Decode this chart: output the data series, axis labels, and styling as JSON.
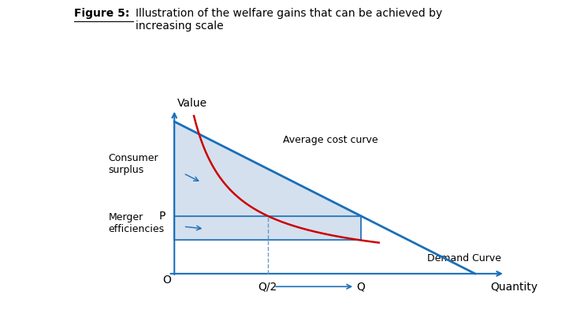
{
  "title_bold": "Figure 5:",
  "title_normal": "Illustration of the welfare gains that can be achieved by\nincreasing scale",
  "xlabel": "Quantity",
  "ylabel": "Value",
  "x_origin_label": "O",
  "demand_color": "#1a6fba",
  "avg_cost_color": "#cc0000",
  "shading_color": "#b8cce4",
  "shading_alpha": 0.6,
  "border_color": "#1a6fba",
  "P_label": "P",
  "Q_label": "Q",
  "Q2_label": "Q/2",
  "consumer_surplus_label": "Consumer\nsurplus",
  "merger_efficiencies_label": "Merger\nefficiencies",
  "avg_cost_label": "Average cost curve",
  "demand_label": "Demand Curve",
  "arrow_color": "#1a6fba",
  "dashed_line_color": "#6699cc",
  "P_val": 0.38,
  "Q_val": 0.62,
  "Q2_val": 0.31,
  "cost_at_Q_val": 0.22,
  "figsize": [
    7.22,
    3.98
  ],
  "dpi": 100
}
